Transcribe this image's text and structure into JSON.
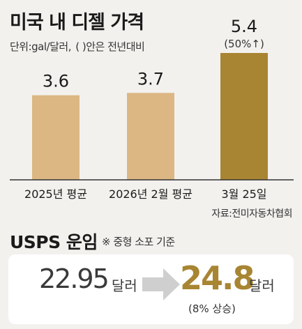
{
  "chart_data": {
    "type": "bar",
    "title": "미국 내 디젤 가격",
    "unit_note": "단위:gal/달러,",
    "unit_paren": "(    )안은 전년대비",
    "categories": [
      "2025년 평균",
      "2026년 2월 평균",
      "3월 25일"
    ],
    "values": [
      3.6,
      3.7,
      5.4
    ],
    "value_labels": [
      "3.6",
      "3.7",
      "5.4"
    ],
    "change_labels": [
      "",
      "",
      "(50%↑)"
    ],
    "colors": [
      "#dcb783",
      "#dcb783",
      "#a88532"
    ],
    "ylim": [
      0,
      5.4
    ],
    "source": "자료:전미자동차협회"
  },
  "usps": {
    "title": "USPS 운임",
    "note": "※ 중형 소포 기준",
    "from_value": "22.95",
    "from_unit": "달러",
    "to_value": "24.8",
    "to_unit": "달러",
    "to_change": "(8% 상승)",
    "arrow_icon": "right-arrow-icon",
    "accent_color": "#a88532"
  }
}
